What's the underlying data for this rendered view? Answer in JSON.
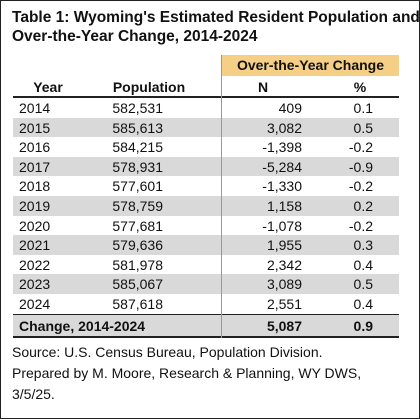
{
  "title": [
    "Table 1: Wyoming's Estimated Resident Population and",
    "Over-the-Year Change, 2014-2024"
  ],
  "table": {
    "group_header": "Over-the-Year Change",
    "columns": [
      "Year",
      "Population",
      "N",
      "%"
    ],
    "rows": [
      [
        "2014",
        "582,531",
        "409",
        "0.1"
      ],
      [
        "2015",
        "585,613",
        "3,082",
        "0.5"
      ],
      [
        "2016",
        "584,215",
        "-1,398",
        "-0.2"
      ],
      [
        "2017",
        "578,931",
        "-5,284",
        "-0.9"
      ],
      [
        "2018",
        "577,601",
        "-1,330",
        "-0.2"
      ],
      [
        "2019",
        "578,759",
        "1,158",
        "0.2"
      ],
      [
        "2020",
        "577,681",
        "-1,078",
        "-0.2"
      ],
      [
        "2021",
        "579,636",
        "1,955",
        "0.3"
      ],
      [
        "2022",
        "581,978",
        "2,342",
        "0.4"
      ],
      [
        "2023",
        "585,067",
        "3,089",
        "0.5"
      ],
      [
        "2024",
        "587,618",
        "2,551",
        "0.4"
      ]
    ],
    "total": [
      "Change, 2014-2024",
      "5,087",
      "0.9"
    ]
  },
  "source": [
    "Source: U.S. Census Bureau, Population Division.",
    "Prepared by M. Moore, Research & Planning, WY DWS,",
    "3/5/25."
  ]
}
